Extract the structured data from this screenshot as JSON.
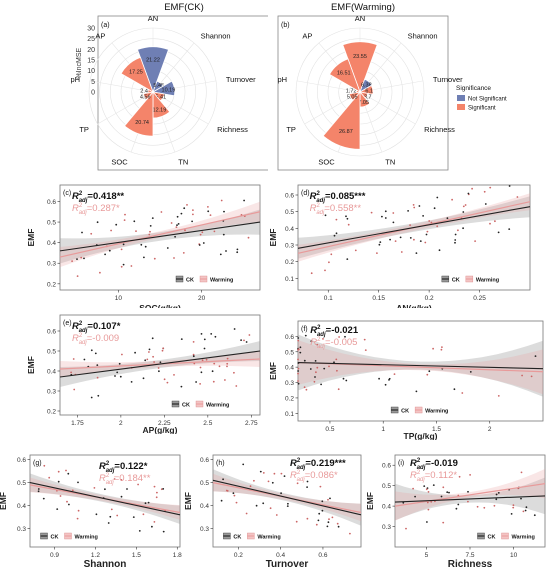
{
  "legend_sig": {
    "title": "Significance",
    "items": [
      "Not Significant",
      "Significant"
    ]
  },
  "colors": {
    "not_sig": "#6f7fb4",
    "sig": "#f4846a",
    "ck": "#222222",
    "warm": "#e89a9a",
    "band": "#9a9a9a"
  },
  "chart_data": [
    {
      "type": "pie",
      "label": "(a)",
      "title": "EMF(CK)",
      "ylabel": "%IncMSE",
      "ylim": [
        0,
        30
      ],
      "yticks": [
        0,
        5,
        10,
        15,
        20,
        25,
        30
      ],
      "categories": [
        "AN",
        "Shannon",
        "Turnover",
        "Richness",
        "TN",
        "SOC",
        "TP",
        "pH",
        "AP"
      ],
      "values": [
        21.22,
        5.45,
        10.19,
        5.41,
        12.19,
        20.74,
        4.56,
        2.4,
        17.25
      ],
      "significance": [
        "Not Significant",
        "Not Significant",
        "Not Significant",
        "Significant",
        "Significant",
        "Significant",
        "Significant",
        "Significant",
        "Significant"
      ],
      "value_labels": [
        "21.22",
        "5.45",
        "10.19",
        "5.41",
        "12.19",
        "20.74",
        "4.56",
        "2.4",
        "17.25"
      ]
    },
    {
      "type": "pie",
      "label": "(b)",
      "title": "EMF(Warming)",
      "ylim": [
        0,
        30
      ],
      "categories": [
        "AN",
        "Shannon",
        "Turnover",
        "Richness",
        "TN",
        "SOC",
        "TP",
        "pH",
        "AP"
      ],
      "values": [
        23.55,
        6.38,
        6.1,
        3.7,
        7.05,
        26.87,
        5.05,
        1.72,
        16.51
      ],
      "significance": [
        "Significant",
        "Not Significant",
        "Significant",
        "Significant",
        "Significant",
        "Significant",
        "Significant",
        "Significant",
        "Significant"
      ],
      "value_labels": [
        "23.55",
        "6.38",
        "6.1",
        "3.7",
        "7.05",
        "26.87",
        "5.05",
        "1.72",
        "16.51"
      ]
    },
    {
      "type": "scatter",
      "label": "(c)",
      "xlabel": "SOC(g/kg)",
      "ylabel": "EMF",
      "xlim": [
        3,
        27
      ],
      "ylim": [
        0.17,
        0.68
      ],
      "xticks": [
        10,
        20
      ],
      "yticks": [
        0.2,
        0.3,
        0.4,
        0.5,
        0.6
      ],
      "ck": {
        "r2": "=0.418**",
        "line": [
          [
            3,
            0.36
          ],
          [
            27,
            0.5
          ]
        ]
      },
      "warming": {
        "r2": "=0.287*",
        "line": [
          [
            3,
            0.33
          ],
          [
            27,
            0.55
          ]
        ]
      }
    },
    {
      "type": "scatter",
      "label": "(d)",
      "xlabel": "AN(g/kg)",
      "ylabel": "EMF",
      "xlim": [
        0.07,
        0.3
      ],
      "ylim": [
        0.03,
        0.66
      ],
      "xticks": [
        0.1,
        0.15,
        0.2,
        0.25
      ],
      "yticks": [
        0.1,
        0.2,
        0.3,
        0.4,
        0.5,
        0.6
      ],
      "ck": {
        "r2": "=0.085***",
        "line": [
          [
            0.07,
            0.28
          ],
          [
            0.3,
            0.53
          ]
        ]
      },
      "warming": {
        "r2": "=0.558**",
        "line": [
          [
            0.07,
            0.25
          ],
          [
            0.3,
            0.56
          ]
        ]
      }
    },
    {
      "type": "scatter",
      "label": "(e)",
      "xlabel": "AP(g/kg)",
      "ylabel": "EMF",
      "xlim": [
        1.65,
        2.8
      ],
      "ylim": [
        0.18,
        0.68
      ],
      "xticks": [
        1.75,
        2.0,
        2.25,
        2.5,
        2.75
      ],
      "yticks": [
        0.2,
        0.3,
        0.4,
        0.5,
        0.6
      ],
      "ck": {
        "r2": "=0.107*",
        "line": [
          [
            1.65,
            0.37
          ],
          [
            2.8,
            0.5
          ]
        ]
      },
      "warming": {
        "r2": "=-0.009",
        "line": [
          [
            1.65,
            0.41
          ],
          [
            2.8,
            0.46
          ]
        ]
      }
    },
    {
      "type": "scatter",
      "label": "(f)",
      "xlabel": "TP(g/kg)",
      "ylabel": "EMF",
      "xlim": [
        0.2,
        2.5
      ],
      "ylim": [
        0.05,
        0.7
      ],
      "xticks": [
        0.5,
        1.0,
        1.5,
        2.0
      ],
      "yticks": [
        0.1,
        0.2,
        0.3,
        0.4,
        0.5,
        0.6
      ],
      "ck": {
        "r2": "=-0.021",
        "line": [
          [
            0.2,
            0.43
          ],
          [
            2.5,
            0.39
          ]
        ]
      },
      "warming": {
        "r2": "=-0.005",
        "line": [
          [
            0.2,
            0.43
          ],
          [
            2.5,
            0.37
          ]
        ]
      }
    },
    {
      "type": "scatter",
      "label": "(g)",
      "xlabel": "Shannon",
      "ylabel": "EMF",
      "xlim": [
        0.72,
        1.82
      ],
      "ylim": [
        0.22,
        0.62
      ],
      "xticks": [
        0.9,
        1.2,
        1.5,
        1.8
      ],
      "yticks": [
        0.3,
        0.4,
        0.5,
        0.6
      ],
      "ck": {
        "r2": "=0.122*",
        "line": [
          [
            0.72,
            0.5
          ],
          [
            1.82,
            0.36
          ]
        ]
      },
      "warming": {
        "r2": "=0.184**",
        "line": [
          [
            0.72,
            0.49
          ],
          [
            1.82,
            0.37
          ]
        ]
      }
    },
    {
      "type": "scatter",
      "label": "(h)",
      "xlabel": "Turnover",
      "ylabel": "EMF",
      "xlim": [
        0.08,
        0.78
      ],
      "ylim": [
        0.22,
        0.62
      ],
      "xticks": [
        0.2,
        0.4,
        0.6
      ],
      "yticks": [
        0.3,
        0.4,
        0.5,
        0.6
      ],
      "ck": {
        "r2": "=0.219***",
        "line": [
          [
            0.08,
            0.51
          ],
          [
            0.78,
            0.36
          ]
        ]
      },
      "warming": {
        "r2": "=0.086*",
        "line": [
          [
            0.08,
            0.5
          ],
          [
            0.78,
            0.37
          ]
        ]
      }
    },
    {
      "type": "scatter",
      "label": "(i)",
      "xlabel": "Richness",
      "ylabel": "EMF",
      "xlim": [
        3.2,
        11.8
      ],
      "ylim": [
        0.2,
        0.65
      ],
      "xticks": [
        5.0,
        7.5,
        10.0
      ],
      "yticks": [
        0.3,
        0.4,
        0.5,
        0.6
      ],
      "ck": {
        "r2": "=-0.019",
        "line": [
          [
            3.2,
            0.42
          ],
          [
            11.8,
            0.45
          ]
        ]
      },
      "warming": {
        "r2": "=0.112*",
        "line": [
          [
            3.2,
            0.4
          ],
          [
            11.8,
            0.51
          ]
        ]
      }
    }
  ],
  "scatter_legend": {
    "ck": "CK",
    "warm": "Warming"
  }
}
